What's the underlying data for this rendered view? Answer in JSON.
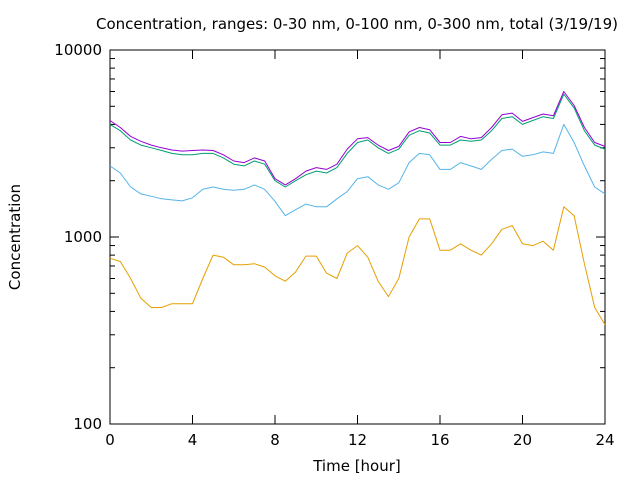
{
  "chart_data": {
    "type": "line",
    "title": "Concentration, ranges: 0-30 nm, 0-100 nm, 0-300 nm, total (3/19/19)",
    "xlabel": "Time [hour]",
    "ylabel": "Concentration",
    "xlim": [
      0,
      24
    ],
    "ylim": [
      100,
      10000
    ],
    "yscale": "log",
    "grid": false,
    "legend": "none",
    "x_ticks": [
      0,
      4,
      8,
      12,
      16,
      20,
      24
    ],
    "x_tick_labels": [
      "0",
      "4",
      "8",
      "12",
      "16",
      "20",
      "24"
    ],
    "y_ticks": [
      100,
      1000,
      10000
    ],
    "y_tick_labels": [
      "100",
      "1000",
      "10000"
    ],
    "x": [
      0,
      0.5,
      1,
      1.5,
      2,
      2.5,
      3,
      3.5,
      4,
      4.5,
      5,
      5.5,
      6,
      6.5,
      7,
      7.5,
      8,
      8.5,
      9,
      9.5,
      10,
      10.5,
      11,
      11.5,
      12,
      12.5,
      13,
      13.5,
      14,
      14.5,
      15,
      15.5,
      16,
      16.5,
      17,
      17.5,
      18,
      18.5,
      19,
      19.5,
      20,
      20.5,
      21,
      21.5,
      22,
      22.5,
      23,
      23.5,
      24
    ],
    "series": [
      {
        "color": "#e69f00",
        "values": [
          770,
          740,
          600,
          470,
          420,
          420,
          440,
          440,
          440,
          600,
          800,
          780,
          710,
          710,
          720,
          690,
          620,
          580,
          650,
          790,
          790,
          640,
          600,
          820,
          900,
          780,
          580,
          480,
          600,
          1000,
          1250,
          1250,
          850,
          850,
          920,
          850,
          800,
          920,
          1100,
          1150,
          920,
          900,
          950,
          850,
          1450,
          1300,
          720,
          420,
          340
        ]
      },
      {
        "color": "#56b4e9",
        "values": [
          2400,
          2200,
          1850,
          1700,
          1650,
          1600,
          1580,
          1560,
          1620,
          1800,
          1850,
          1800,
          1780,
          1800,
          1900,
          1800,
          1550,
          1300,
          1400,
          1500,
          1450,
          1450,
          1600,
          1750,
          2050,
          2100,
          1900,
          1800,
          1950,
          2500,
          2800,
          2750,
          2300,
          2300,
          2500,
          2400,
          2300,
          2600,
          2900,
          2950,
          2700,
          2750,
          2850,
          2800,
          4000,
          3200,
          2400,
          1850,
          1700
        ]
      },
      {
        "color": "#009e73",
        "values": [
          4000,
          3700,
          3300,
          3100,
          3000,
          2900,
          2800,
          2750,
          2750,
          2800,
          2800,
          2650,
          2450,
          2400,
          2550,
          2450,
          2000,
          1850,
          2000,
          2150,
          2250,
          2200,
          2350,
          2800,
          3200,
          3300,
          3000,
          2800,
          2950,
          3500,
          3700,
          3600,
          3100,
          3100,
          3300,
          3250,
          3300,
          3700,
          4300,
          4400,
          4000,
          4200,
          4400,
          4300,
          5800,
          4900,
          3700,
          3100,
          2950
        ]
      },
      {
        "color": "#9400d3",
        "values": [
          4200,
          3850,
          3450,
          3250,
          3100,
          3000,
          2920,
          2880,
          2900,
          2920,
          2900,
          2750,
          2550,
          2500,
          2650,
          2550,
          2050,
          1900,
          2050,
          2250,
          2350,
          2300,
          2450,
          2950,
          3350,
          3400,
          3100,
          2900,
          3050,
          3650,
          3850,
          3750,
          3200,
          3200,
          3450,
          3350,
          3400,
          3850,
          4500,
          4600,
          4150,
          4350,
          4550,
          4450,
          6000,
          5050,
          3850,
          3200,
          3050
        ]
      }
    ]
  }
}
